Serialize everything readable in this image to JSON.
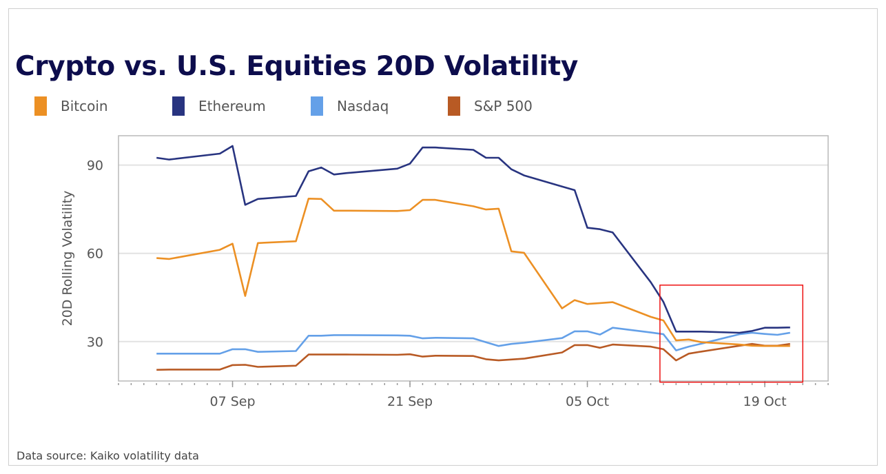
{
  "title": "Crypto vs. U.S. Equities 20D Volatility",
  "source": "Data source: Kaiko volatility data",
  "chart_data": {
    "type": "line",
    "title": "Crypto vs. U.S. Equities 20D Volatility",
    "xlabel": "",
    "ylabel": "20D Rolling Volatility",
    "ylim": [
      16.6,
      100
    ],
    "xlim": [
      "29 Aug",
      "24 Oct"
    ],
    "yticks": [
      30,
      60,
      90
    ],
    "ytick_labels": [
      "30",
      "60",
      "90"
    ],
    "xticks": [
      "07 Sep",
      "21 Sep",
      "05 Oct",
      "19 Oct"
    ],
    "grid": "horizontal",
    "legend": "top-left",
    "x": [
      "01 Sep",
      "02 Sep",
      "06 Sep",
      "07 Sep",
      "08 Sep",
      "09 Sep",
      "12 Sep",
      "13 Sep",
      "14 Sep",
      "15 Sep",
      "16 Sep",
      "20 Sep",
      "21 Sep",
      "22 Sep",
      "23 Sep",
      "26 Sep",
      "27 Sep",
      "28 Sep",
      "29 Sep",
      "30 Sep",
      "03 Oct",
      "04 Oct",
      "05 Oct",
      "06 Oct",
      "07 Oct",
      "10 Oct",
      "11 Oct",
      "12 Oct",
      "13 Oct",
      "14 Oct",
      "17 Oct",
      "18 Oct",
      "19 Oct",
      "20 Oct",
      "21 Oct"
    ],
    "series": [
      {
        "name": "Bitcoin",
        "color": "#ec9024",
        "values": [
          58.4,
          58.1,
          61.2,
          63.3,
          45.5,
          63.5,
          64.1,
          78.6,
          78.5,
          74.5,
          74.5,
          74.4,
          74.7,
          78.2,
          78.2,
          76.0,
          74.9,
          75.2,
          60.7,
          60.2,
          41.3,
          44.1,
          42.8,
          43.1,
          43.4,
          38.4,
          37.2,
          30.4,
          30.7,
          29.8,
          29.0,
          28.6,
          28.5,
          28.5,
          28.5
        ]
      },
      {
        "name": "Ethereum",
        "color": "#283480",
        "values": [
          92.5,
          91.9,
          93.9,
          96.5,
          76.5,
          78.5,
          79.5,
          87.9,
          89.2,
          86.8,
          87.3,
          88.8,
          90.5,
          96.0,
          96.0,
          95.2,
          92.5,
          92.5,
          88.6,
          86.5,
          82.7,
          81.5,
          68.7,
          68.2,
          67.1,
          50.2,
          43.5,
          33.4,
          33.4,
          33.4,
          33.0,
          33.6,
          34.7,
          34.7,
          34.8
        ]
      },
      {
        "name": "Nasdaq",
        "color": "#64a0e8",
        "values": [
          25.9,
          25.9,
          25.9,
          27.4,
          27.4,
          26.5,
          26.8,
          32.0,
          32.0,
          32.2,
          32.2,
          32.1,
          32.0,
          31.1,
          31.3,
          31.1,
          29.8,
          28.5,
          29.2,
          29.6,
          31.2,
          33.5,
          33.5,
          32.4,
          34.7,
          33.1,
          32.5,
          27.0,
          28.3,
          29.3,
          32.5,
          33.0,
          32.6,
          32.3,
          33.0
        ]
      },
      {
        "name": "S&P 500",
        "color": "#b85a24",
        "values": [
          20.4,
          20.5,
          20.5,
          22.0,
          22.1,
          21.4,
          21.8,
          25.6,
          25.6,
          25.6,
          25.6,
          25.5,
          25.7,
          24.9,
          25.2,
          25.1,
          24.0,
          23.6,
          23.9,
          24.2,
          26.3,
          28.8,
          28.8,
          27.9,
          29.0,
          28.3,
          27.4,
          23.6,
          25.9,
          26.6,
          28.6,
          29.2,
          28.6,
          28.6,
          29.2
        ]
      }
    ],
    "highlight": {
      "color": "#ee1111",
      "x_range": [
        "11 Oct",
        "22 Oct"
      ],
      "y_range": [
        16.2,
        49.2
      ]
    }
  }
}
